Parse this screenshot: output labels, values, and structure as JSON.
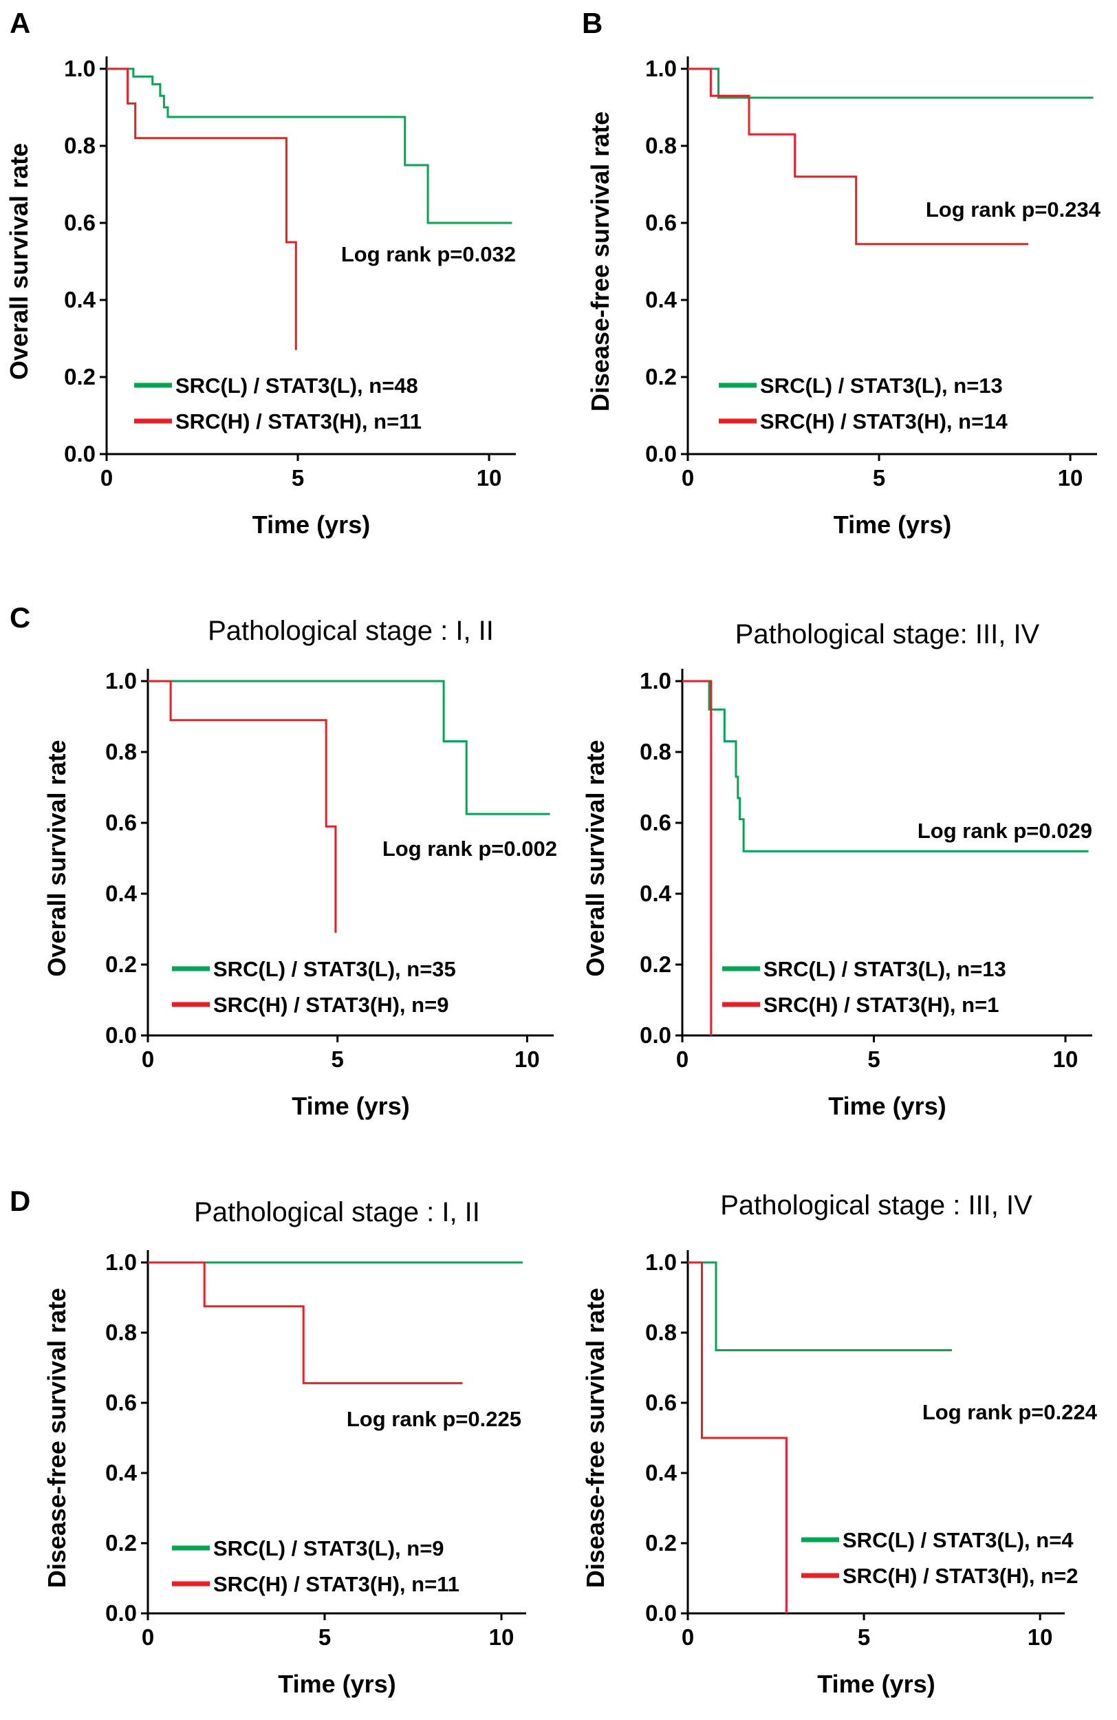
{
  "figure": {
    "panel_labels": [
      "A",
      "B",
      "C",
      "D"
    ]
  },
  "colors": {
    "low": "#00a651",
    "high": "#ee1c24",
    "axis": "#000000"
  },
  "chart_data": [
    {
      "id": "A",
      "type": "line",
      "title": "",
      "xlabel": "Time (yrs)",
      "ylabel": "Overall survival rate",
      "xlim": [
        0,
        10.7
      ],
      "ylim": [
        0,
        1.0
      ],
      "xticks": [
        0,
        5,
        10
      ],
      "yticks": [
        0.0,
        0.2,
        0.4,
        0.6,
        0.8,
        1.0
      ],
      "annotation": "Log rank p=0.032",
      "series": [
        {
          "name": "SRC(L) / STAT3(L), n=48",
          "group": "low",
          "x": [
            0,
            0.7,
            0.7,
            1.2,
            1.2,
            1.4,
            1.4,
            1.5,
            1.5,
            1.6,
            1.6,
            7.8,
            7.8,
            8.4,
            8.4,
            10.6
          ],
          "y": [
            1.0,
            1.0,
            0.98,
            0.98,
            0.96,
            0.96,
            0.93,
            0.93,
            0.9,
            0.9,
            0.875,
            0.875,
            0.75,
            0.75,
            0.6,
            0.6
          ]
        },
        {
          "name": "SRC(H) / STAT3(H), n=11",
          "group": "high",
          "x": [
            0,
            0.55,
            0.55,
            0.75,
            0.75,
            4.7,
            4.7,
            4.95,
            4.95
          ],
          "y": [
            1.0,
            1.0,
            0.91,
            0.91,
            0.82,
            0.82,
            0.55,
            0.55,
            0.27
          ]
        }
      ]
    },
    {
      "id": "B",
      "type": "line",
      "title": "",
      "xlabel": "Time (yrs)",
      "ylabel": "Disease-free survival rate",
      "xlim": [
        0,
        10.7
      ],
      "ylim": [
        0,
        1.0
      ],
      "xticks": [
        0,
        5,
        10
      ],
      "yticks": [
        0.0,
        0.2,
        0.4,
        0.6,
        0.8,
        1.0
      ],
      "annotation": "Log rank p=0.234",
      "series": [
        {
          "name": "SRC(L) / STAT3(L), n=13",
          "group": "low",
          "x": [
            0,
            0.8,
            0.8,
            10.6
          ],
          "y": [
            1.0,
            1.0,
            0.925,
            0.925
          ]
        },
        {
          "name": "SRC(H) / STAT3(H), n=14",
          "group": "high",
          "x": [
            0,
            0.6,
            0.6,
            1.6,
            1.6,
            2.8,
            2.8,
            4.4,
            4.4,
            8.9
          ],
          "y": [
            1.0,
            1.0,
            0.93,
            0.93,
            0.83,
            0.83,
            0.72,
            0.72,
            0.545,
            0.545
          ]
        }
      ]
    },
    {
      "id": "C1",
      "type": "line",
      "title": "Pathological stage : I, II",
      "xlabel": "Time (yrs)",
      "ylabel": "Overall survival rate",
      "xlim": [
        0,
        10.7
      ],
      "ylim": [
        0,
        1.0
      ],
      "xticks": [
        0,
        5,
        10
      ],
      "yticks": [
        0.0,
        0.2,
        0.4,
        0.6,
        0.8,
        1.0
      ],
      "annotation": "Log rank p=0.002",
      "series": [
        {
          "name": "SRC(L) / STAT3(L), n=35",
          "group": "low",
          "x": [
            0,
            7.8,
            7.8,
            8.4,
            8.4,
            10.6
          ],
          "y": [
            1.0,
            1.0,
            0.83,
            0.83,
            0.625,
            0.625
          ]
        },
        {
          "name": "SRC(H) / STAT3(H), n=9",
          "group": "high",
          "x": [
            0,
            0.6,
            0.6,
            4.7,
            4.7,
            4.95,
            4.95
          ],
          "y": [
            1.0,
            1.0,
            0.89,
            0.89,
            0.59,
            0.59,
            0.29
          ]
        }
      ]
    },
    {
      "id": "C2",
      "type": "line",
      "title": "Pathological stage: III, IV",
      "xlabel": "Time (yrs)",
      "ylabel": "Overall survival rate",
      "xlim": [
        0,
        10.7
      ],
      "ylim": [
        0,
        1.0
      ],
      "xticks": [
        0,
        5,
        10
      ],
      "yticks": [
        0.0,
        0.2,
        0.4,
        0.6,
        0.8,
        1.0
      ],
      "annotation": "Log rank p=0.029",
      "series": [
        {
          "name": "SRC(L) / STAT3(L), n=13",
          "group": "low",
          "x": [
            0,
            0.7,
            0.7,
            1.1,
            1.1,
            1.4,
            1.4,
            1.45,
            1.45,
            1.5,
            1.5,
            1.6,
            1.6,
            10.6
          ],
          "y": [
            1.0,
            1.0,
            0.92,
            0.92,
            0.83,
            0.83,
            0.73,
            0.73,
            0.67,
            0.67,
            0.61,
            0.61,
            0.52,
            0.52
          ]
        },
        {
          "name": "SRC(H) / STAT3(H), n=1",
          "group": "high",
          "x": [
            0,
            0.75,
            0.75
          ],
          "y": [
            1.0,
            1.0,
            0.0
          ]
        }
      ]
    },
    {
      "id": "D1",
      "type": "line",
      "title": "Pathological stage : I, II",
      "xlabel": "Time (yrs)",
      "ylabel": "Disease-free survival rate",
      "xlim": [
        0,
        10.7
      ],
      "ylim": [
        0,
        1.0
      ],
      "xticks": [
        0,
        5,
        10
      ],
      "yticks": [
        0.0,
        0.2,
        0.4,
        0.6,
        0.8,
        1.0
      ],
      "annotation": "Log rank p=0.225",
      "series": [
        {
          "name": "SRC(L) / STAT3(L), n=9",
          "group": "low",
          "x": [
            0,
            10.6
          ],
          "y": [
            1.0,
            1.0
          ]
        },
        {
          "name": "SRC(H) / STAT3(H), n=11",
          "group": "high",
          "x": [
            0,
            1.6,
            1.6,
            4.4,
            4.4,
            8.9
          ],
          "y": [
            1.0,
            1.0,
            0.875,
            0.875,
            0.656,
            0.656
          ]
        }
      ]
    },
    {
      "id": "D2",
      "type": "line",
      "title": "Pathological stage : III, IV",
      "xlabel": "Time (yrs)",
      "ylabel": "Disease-free survival rate",
      "xlim": [
        0,
        10.7
      ],
      "ylim": [
        0,
        1.0
      ],
      "xticks": [
        0,
        5,
        10
      ],
      "yticks": [
        0.0,
        0.2,
        0.4,
        0.6,
        0.8,
        1.0
      ],
      "annotation": "Log rank p=0.224",
      "series": [
        {
          "name": "SRC(L) / STAT3(L), n=4",
          "group": "low",
          "x": [
            0,
            0.8,
            0.8,
            7.5
          ],
          "y": [
            1.0,
            1.0,
            0.75,
            0.75
          ]
        },
        {
          "name": "SRC(H) / STAT3(H), n=2",
          "group": "high",
          "x": [
            0,
            0.4,
            0.4,
            2.8,
            2.8
          ],
          "y": [
            1.0,
            1.0,
            0.5,
            0.5,
            0.0
          ]
        }
      ]
    }
  ]
}
